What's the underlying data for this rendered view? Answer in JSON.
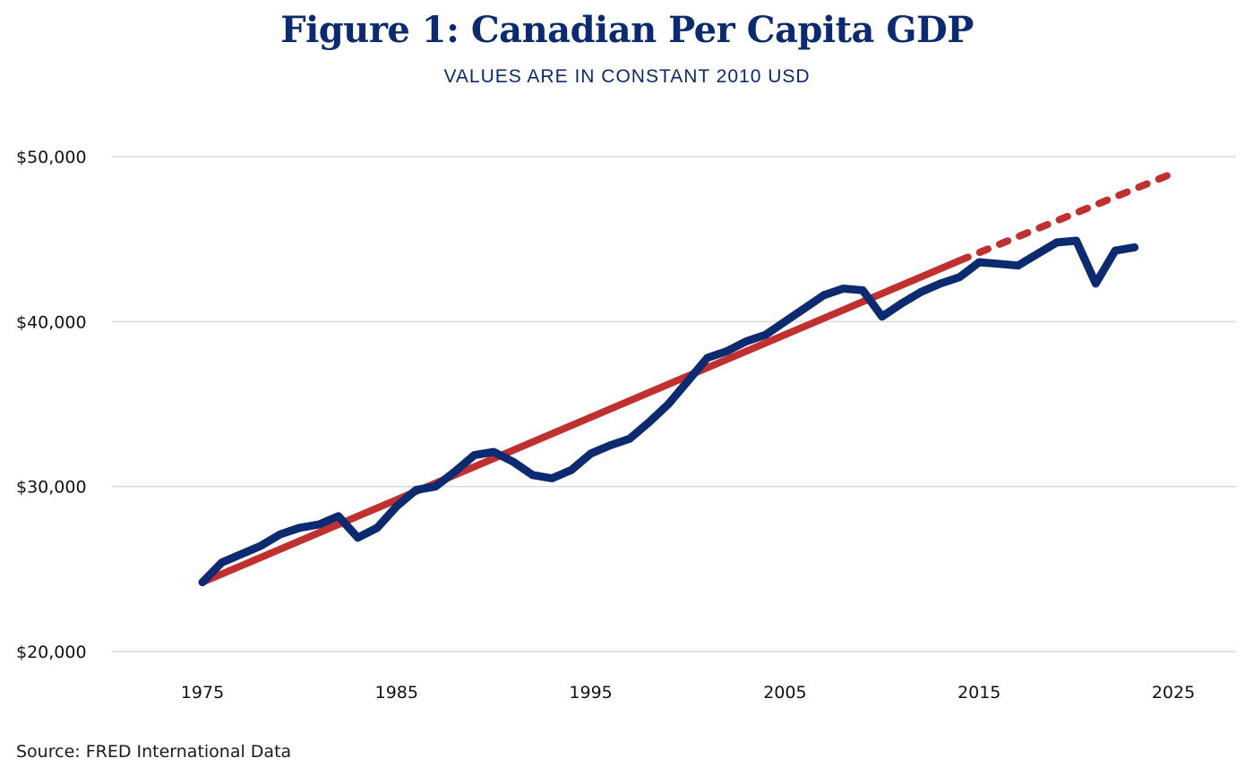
{
  "chart_data": {
    "type": "line",
    "title": "Figure 1: Canadian Per Capita GDP",
    "subtitle": "VALUES ARE IN CONSTANT 2010 USD",
    "source": "Source: FRED International Data",
    "xlabel": "",
    "ylabel": "",
    "xlim": [
      1975,
      2025
    ],
    "ylim": [
      20000,
      50000
    ],
    "x_ticks": [
      {
        "value": 1975,
        "label": "1975"
      },
      {
        "value": 1985,
        "label": "1985"
      },
      {
        "value": 1995,
        "label": "1995"
      },
      {
        "value": 2005,
        "label": "2005"
      },
      {
        "value": 2015,
        "label": "2015"
      },
      {
        "value": 2025,
        "label": "2025"
      }
    ],
    "y_ticks": [
      {
        "value": 20000,
        "label": "$20,000"
      },
      {
        "value": 30000,
        "label": "$30,000"
      },
      {
        "value": 40000,
        "label": "$40,000"
      },
      {
        "value": 50000,
        "label": "$50,000"
      }
    ],
    "grid": "horizontal",
    "legend": "none",
    "series": [
      {
        "kind": "actual",
        "color": "#0b2a6f",
        "x": [
          1975,
          1976,
          1977,
          1978,
          1979,
          1980,
          1981,
          1982,
          1983,
          1984,
          1985,
          1986,
          1987,
          1988,
          1989,
          1990,
          1991,
          1992,
          1993,
          1994,
          1995,
          1996,
          1997,
          1998,
          1999,
          2000,
          2001,
          2002,
          2003,
          2004,
          2005,
          2006,
          2007,
          2008,
          2009,
          2010,
          2011,
          2012,
          2013,
          2014,
          2015,
          2016,
          2017,
          2018,
          2019,
          2020,
          2021,
          2022,
          2023
        ],
        "y": [
          24200,
          25400,
          25900,
          26400,
          27100,
          27500,
          27700,
          28200,
          26900,
          27500,
          28800,
          29800,
          30000,
          30900,
          31900,
          32100,
          31500,
          30700,
          30500,
          31000,
          32000,
          32500,
          32900,
          33900,
          35000,
          36400,
          37800,
          38200,
          38800,
          39200,
          40000,
          40800,
          41600,
          42000,
          41900,
          40300,
          41100,
          41800,
          42300,
          42700,
          43600,
          43500,
          43400,
          44100,
          44800,
          44900,
          42300,
          44300,
          44500
        ]
      },
      {
        "kind": "trend",
        "color": "#c0302f",
        "x": [
          1975,
          2014
        ],
        "y": [
          24200,
          43700
        ]
      },
      {
        "kind": "trend-projection",
        "color": "#c0302f",
        "style": "dashed",
        "x": [
          2014,
          2025
        ],
        "y": [
          43700,
          49000
        ]
      }
    ]
  }
}
